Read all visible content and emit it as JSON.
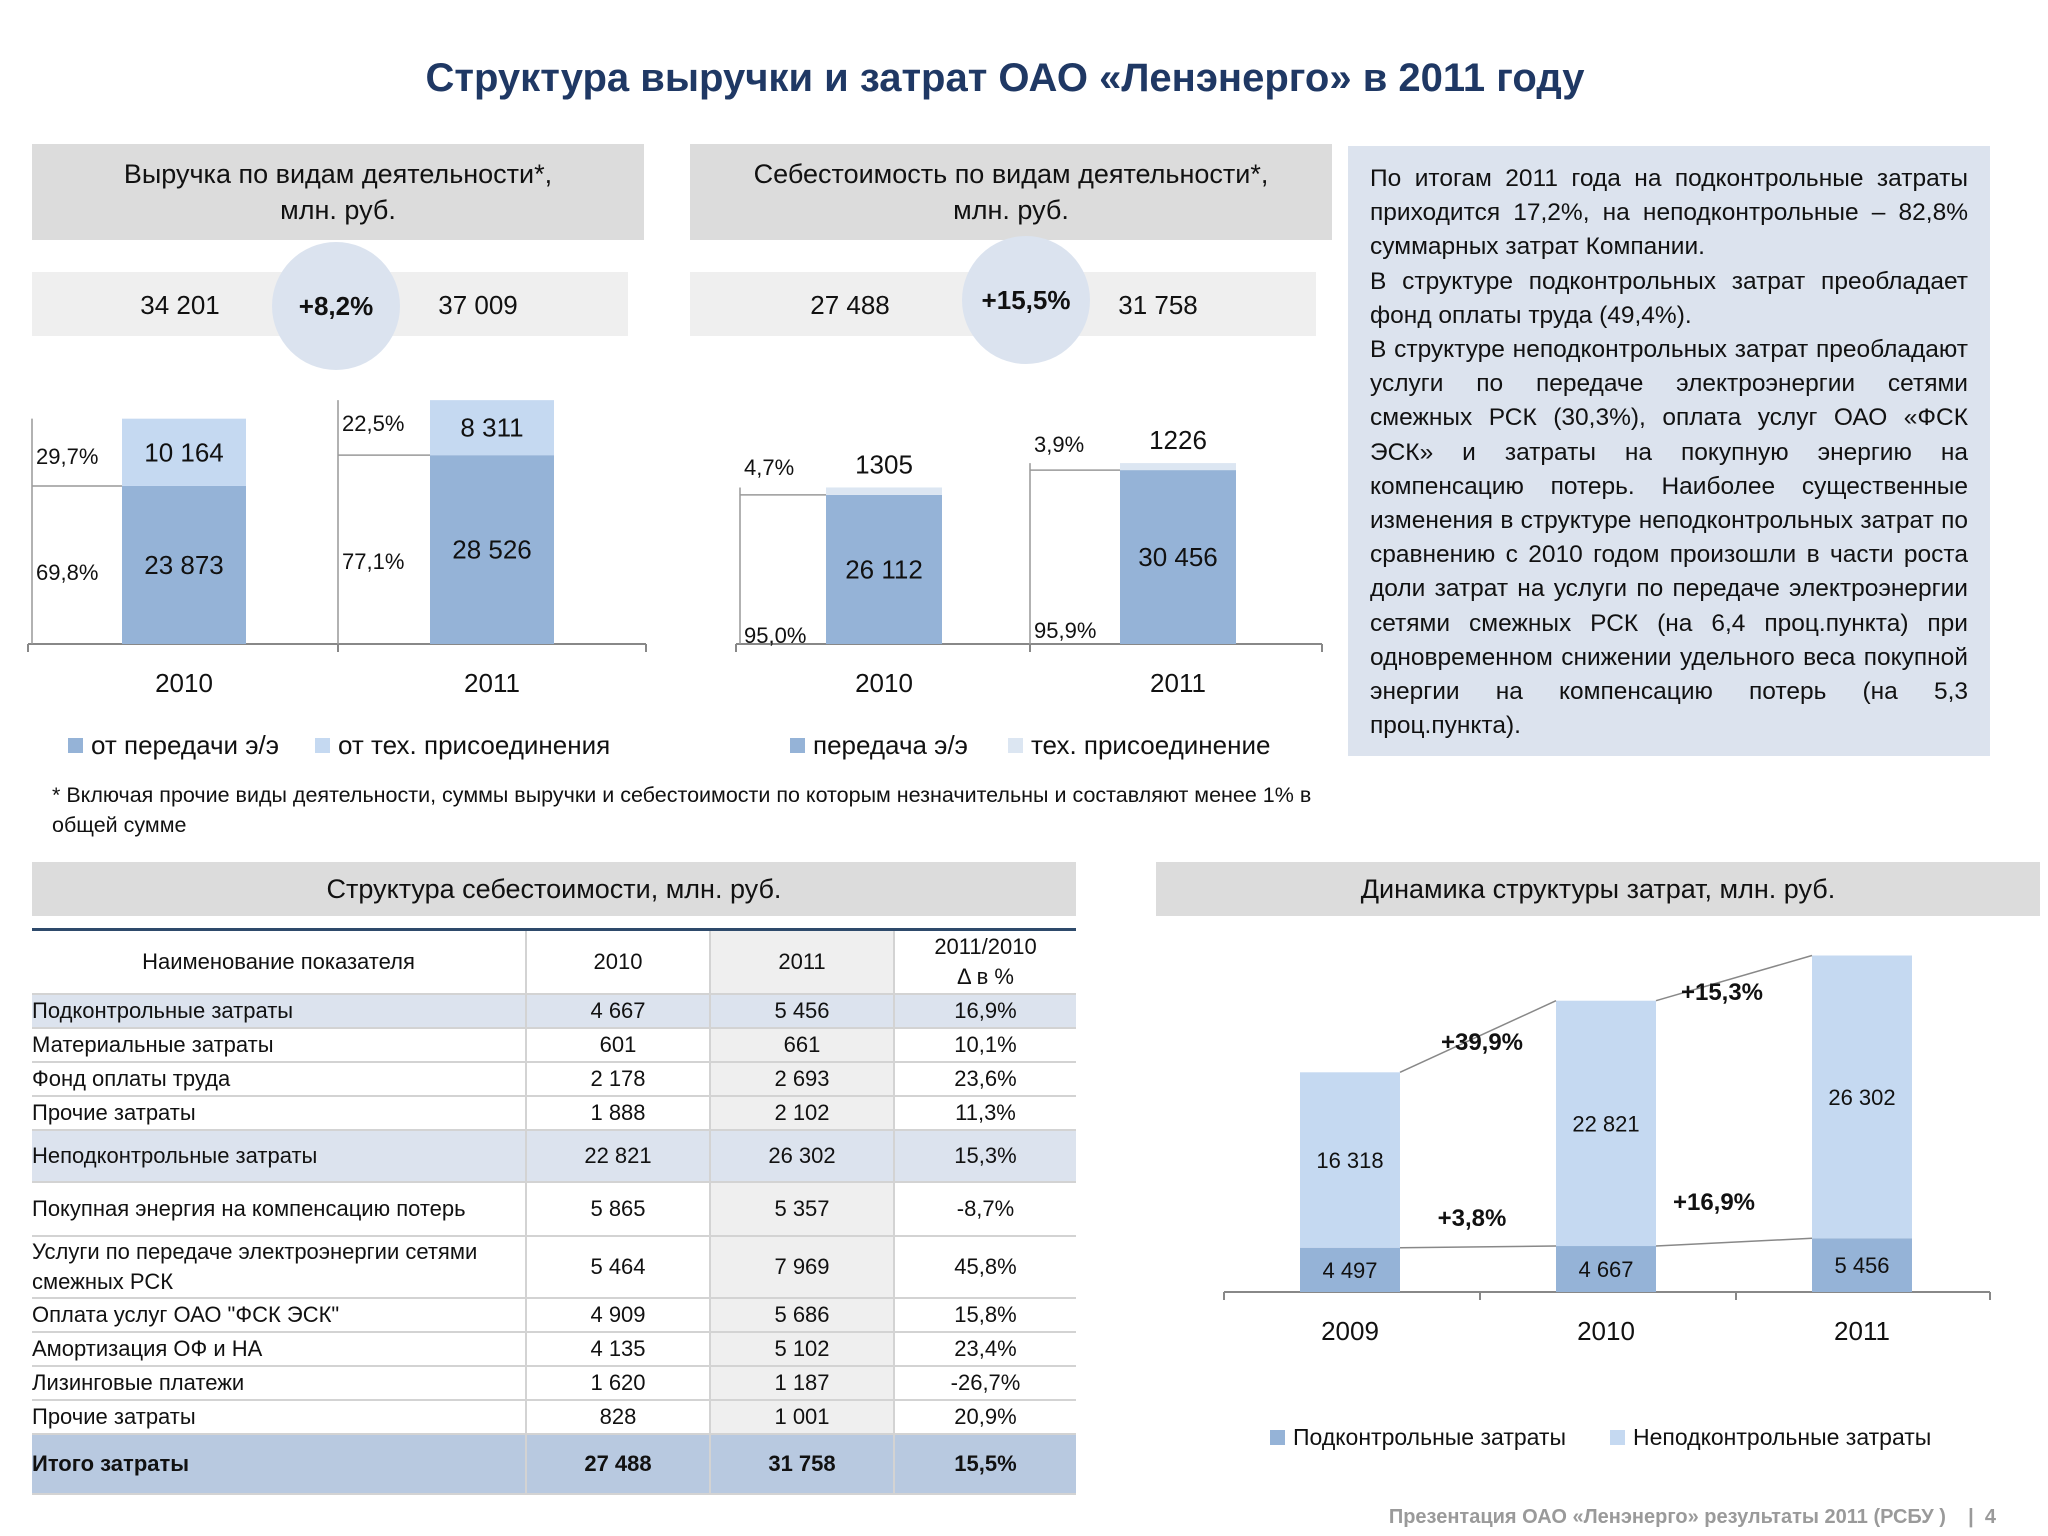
{
  "title": "Структура выручки и затрат ОАО «Ленэнерго» в 2011 году",
  "revenue": {
    "header": "Выручка по видам деятельности*,\nмлн. руб.",
    "total_2010": "34 201",
    "total_2011": "37 009",
    "growth": "+8,2%",
    "legend": [
      "от передачи э/э",
      "от тех. присоединения"
    ]
  },
  "cost": {
    "header": "Себестоимость по видам деятельности*,\nмлн. руб.",
    "total_2010": "27 488",
    "total_2011": "31 758",
    "growth": "+15,5%",
    "legend": [
      "передача э/э",
      "тех. присоединение"
    ]
  },
  "note": [
    "По итогам 2011 года на подконтрольные затраты приходится 17,2%, на неподконтрольные – 82,8% суммарных затрат Компании.",
    "В структуре подконтрольных затрат преобладает фонд оплаты труда (49,4%).",
    "В структуре неподконтрольных затрат преобладают услуги по передаче электроэнергии сетями смежных РСК (30,3%), оплата услуг ОАО «ФСК ЭСК» и затраты на покупную энергию на компенсацию потерь. Наиболее существенные изменения в структуре неподконтрольных затрат по сравнению с 2010 годом произошли в части роста доли затрат на услуги по передаче электроэнергии сетями смежных РСК (на 6,4 проц.пункта) при одновременном снижении удельного веса покупной энергии на компенсацию потерь (на 5,3 проц.пункта)."
  ],
  "footnote": "* Включая прочие виды деятельности, суммы выручки и себестоимости по которым незначительны и составляют менее 1% в общей сумме",
  "table": {
    "header": "Структура себестоимости, млн. руб.",
    "columns": [
      "Наименование показателя",
      "2010",
      "2011",
      "2011/2010\nΔ в %"
    ],
    "rows": [
      {
        "name": "Подконтрольные затраты",
        "v2010": "4 667",
        "v2011": "5 456",
        "delta": "16,9%",
        "kind": "hl"
      },
      {
        "name": "Материальные затраты",
        "v2010": "601",
        "v2011": "661",
        "delta": "10,1%",
        "kind": "n"
      },
      {
        "name": "Фонд оплаты труда",
        "v2010": "2 178",
        "v2011": "2 693",
        "delta": "23,6%",
        "kind": "n"
      },
      {
        "name": "Прочие затраты",
        "v2010": "1 888",
        "v2011": "2 102",
        "delta": "11,3%",
        "kind": "n"
      },
      {
        "name": "Неподконтрольные затраты",
        "v2010": "22 821",
        "v2011": "26 302",
        "delta": "15,3%",
        "kind": "hl2"
      },
      {
        "name": "Покупная энергия на компенсацию потерь",
        "v2010": "5 865",
        "v2011": "5 357",
        "delta": "-8,7%",
        "kind": "tall"
      },
      {
        "name": "Услуги по передаче электроэнергии сетями смежных РСК",
        "v2010": "5 464",
        "v2011": "7 969",
        "delta": "45,8%",
        "kind": "two"
      },
      {
        "name": "Оплата услуг ОАО \"ФСК ЭСК\"",
        "v2010": "4 909",
        "v2011": "5 686",
        "delta": "15,8%",
        "kind": "n"
      },
      {
        "name": "Амортизация ОФ и НА",
        "v2010": "4 135",
        "v2011": "5 102",
        "delta": "23,4%",
        "kind": "n"
      },
      {
        "name": "Лизинговые платежи",
        "v2010": "1 620",
        "v2011": "1 187",
        "delta": "-26,7%",
        "kind": "n"
      },
      {
        "name": "Прочие затраты",
        "v2010": "828",
        "v2011": "1 001",
        "delta": "20,9%",
        "kind": "n"
      },
      {
        "name": "Итого затраты",
        "v2010": "27 488",
        "v2011": "31 758",
        "delta": "15,5%",
        "kind": "total"
      }
    ]
  },
  "dynamics_header": "Динамика структуры затрат, млн. руб.",
  "footer": "Презентация ОАО «Ленэнерго» результаты 2011 (РСБУ )    |  4",
  "colors": {
    "dark": "#95b3d7",
    "light": "#c5d9f1",
    "lighter": "#dce6f2"
  },
  "chart_data": [
    {
      "type": "bar",
      "stacked": true,
      "categories": [
        "2010",
        "2011"
      ],
      "series": [
        {
          "name": "от передачи э/э",
          "values": [
            23873,
            28526
          ],
          "labels": [
            "23 873",
            "28 526"
          ],
          "shares": [
            "69,8%",
            "77,1%"
          ]
        },
        {
          "name": "от тех. присоединения",
          "values": [
            10164,
            8311
          ],
          "labels": [
            "10 164",
            "8 311"
          ],
          "shares": [
            "29,7%",
            "22,5%"
          ]
        }
      ]
    },
    {
      "type": "bar",
      "stacked": true,
      "categories": [
        "2010",
        "2011"
      ],
      "series": [
        {
          "name": "передача э/э",
          "values": [
            26112,
            30456
          ],
          "labels": [
            "26 112",
            "30 456"
          ],
          "shares": [
            "95,0%",
            "95,9%"
          ]
        },
        {
          "name": "тех. присоединение",
          "values": [
            1305,
            1226
          ],
          "labels": [
            "1305",
            "1226"
          ],
          "shares": [
            "4,7%",
            "3,9%"
          ]
        }
      ]
    },
    {
      "type": "bar",
      "stacked": true,
      "categories": [
        "2009",
        "2010",
        "2011"
      ],
      "series": [
        {
          "name": "Подконтрольные затраты",
          "values": [
            4497,
            4667,
            5456
          ],
          "labels": [
            "4 497",
            "4 667",
            "5 456"
          ]
        },
        {
          "name": "Неподконтрольные затраты",
          "values": [
            16318,
            22821,
            26302
          ],
          "labels": [
            "16 318",
            "22 821",
            "26 302"
          ]
        }
      ],
      "annotations": [
        "+39,9%",
        "+15,3%",
        "+3,8%",
        "+16,9%"
      ]
    }
  ]
}
